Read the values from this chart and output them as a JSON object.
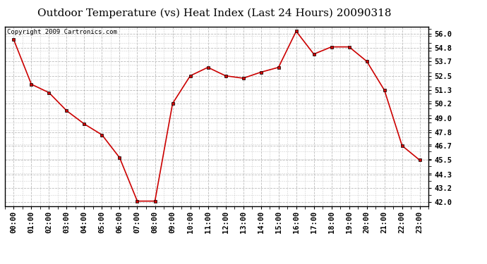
{
  "title": "Outdoor Temperature (vs) Heat Index (Last 24 Hours) 20090318",
  "copyright_text": "Copyright 2009 Cartronics.com",
  "x_labels": [
    "00:00",
    "01:00",
    "02:00",
    "03:00",
    "04:00",
    "05:00",
    "06:00",
    "07:00",
    "08:00",
    "09:00",
    "10:00",
    "11:00",
    "12:00",
    "13:00",
    "14:00",
    "15:00",
    "16:00",
    "17:00",
    "18:00",
    "19:00",
    "20:00",
    "21:00",
    "22:00",
    "23:00"
  ],
  "y_values": [
    55.5,
    51.8,
    51.1,
    49.6,
    48.5,
    47.6,
    45.7,
    42.1,
    42.1,
    50.2,
    52.5,
    53.2,
    52.5,
    52.3,
    52.8,
    53.2,
    56.2,
    54.3,
    54.9,
    54.9,
    53.7,
    51.3,
    46.7,
    45.5
  ],
  "line_color": "#cc0000",
  "marker": "s",
  "marker_size": 3,
  "marker_edge_color": "#000000",
  "bg_color": "#ffffff",
  "outer_bg_color": "#ffffff",
  "grid_color": "#bbbbbb",
  "yticks": [
    42.0,
    43.2,
    44.3,
    45.5,
    46.7,
    47.8,
    49.0,
    50.2,
    51.3,
    52.5,
    53.7,
    54.8,
    56.0
  ],
  "ylim": [
    41.7,
    56.6
  ],
  "title_fontsize": 11,
  "tick_fontsize": 7.5,
  "copyright_fontsize": 6.5
}
